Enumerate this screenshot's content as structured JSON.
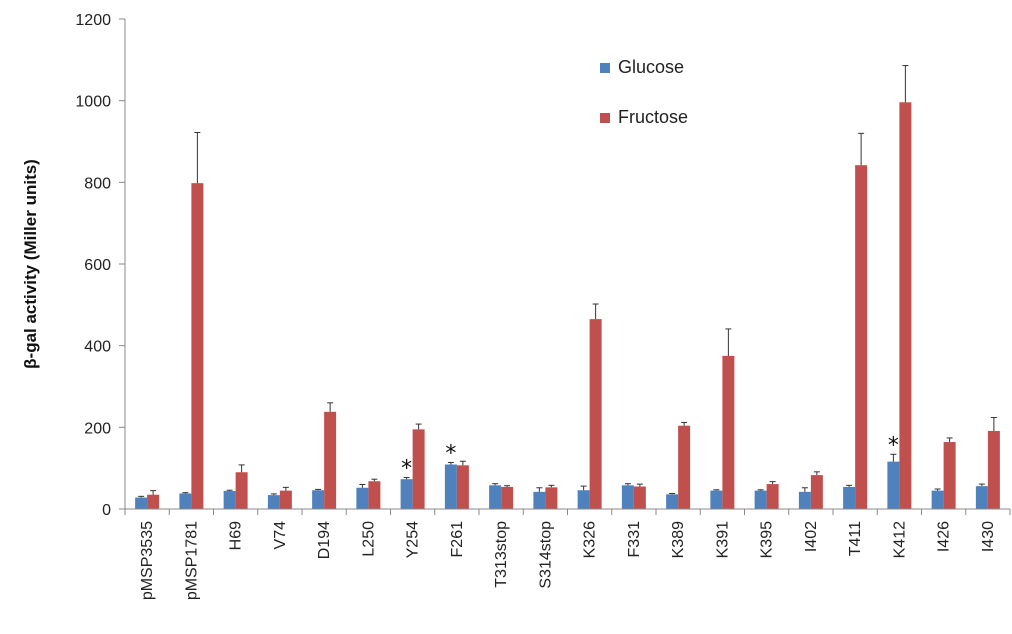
{
  "chart_data": {
    "type": "bar",
    "ylabel": "β-gal activity (Miller units)",
    "xlabel": "",
    "ylim": [
      0,
      1200
    ],
    "yticks": [
      "0",
      "200",
      "400",
      "600",
      "800",
      "1000",
      "1200"
    ],
    "legend_position": "top-right",
    "categories": [
      "pMSP3535",
      "pMSP1781",
      "H69",
      "V74",
      "D194",
      "L250",
      "Y254",
      "F261",
      "T313stop",
      "S314stop",
      "K326",
      "F331",
      "K389",
      "K391",
      "K395",
      "I402",
      "T411",
      "K412",
      "I426",
      "I430"
    ],
    "series": [
      {
        "name": "Glucose",
        "color": "#4F81BD",
        "values": [
          28,
          38,
          44,
          34,
          46,
          52,
          73,
          109,
          58,
          42,
          46,
          58,
          36,
          45,
          45,
          42,
          54,
          116,
          45,
          56
        ],
        "errors": [
          3,
          2,
          2,
          3,
          2,
          8,
          4,
          5,
          4,
          10,
          10,
          4,
          2,
          2,
          2,
          10,
          4,
          18,
          4,
          5
        ]
      },
      {
        "name": "Fructose",
        "color": "#C0504D",
        "values": [
          35,
          798,
          90,
          45,
          238,
          68,
          195,
          107,
          54,
          53,
          465,
          55,
          204,
          375,
          61,
          83,
          842,
          996,
          164,
          191
        ],
        "errors": [
          10,
          124,
          18,
          8,
          22,
          5,
          13,
          10,
          3,
          5,
          37,
          6,
          8,
          66,
          6,
          8,
          78,
          90,
          10,
          33
        ]
      }
    ],
    "annotations": [
      {
        "category": "Y254",
        "text": "*"
      },
      {
        "category": "F261",
        "text": "*"
      },
      {
        "category": "K412",
        "text": "*"
      }
    ]
  }
}
